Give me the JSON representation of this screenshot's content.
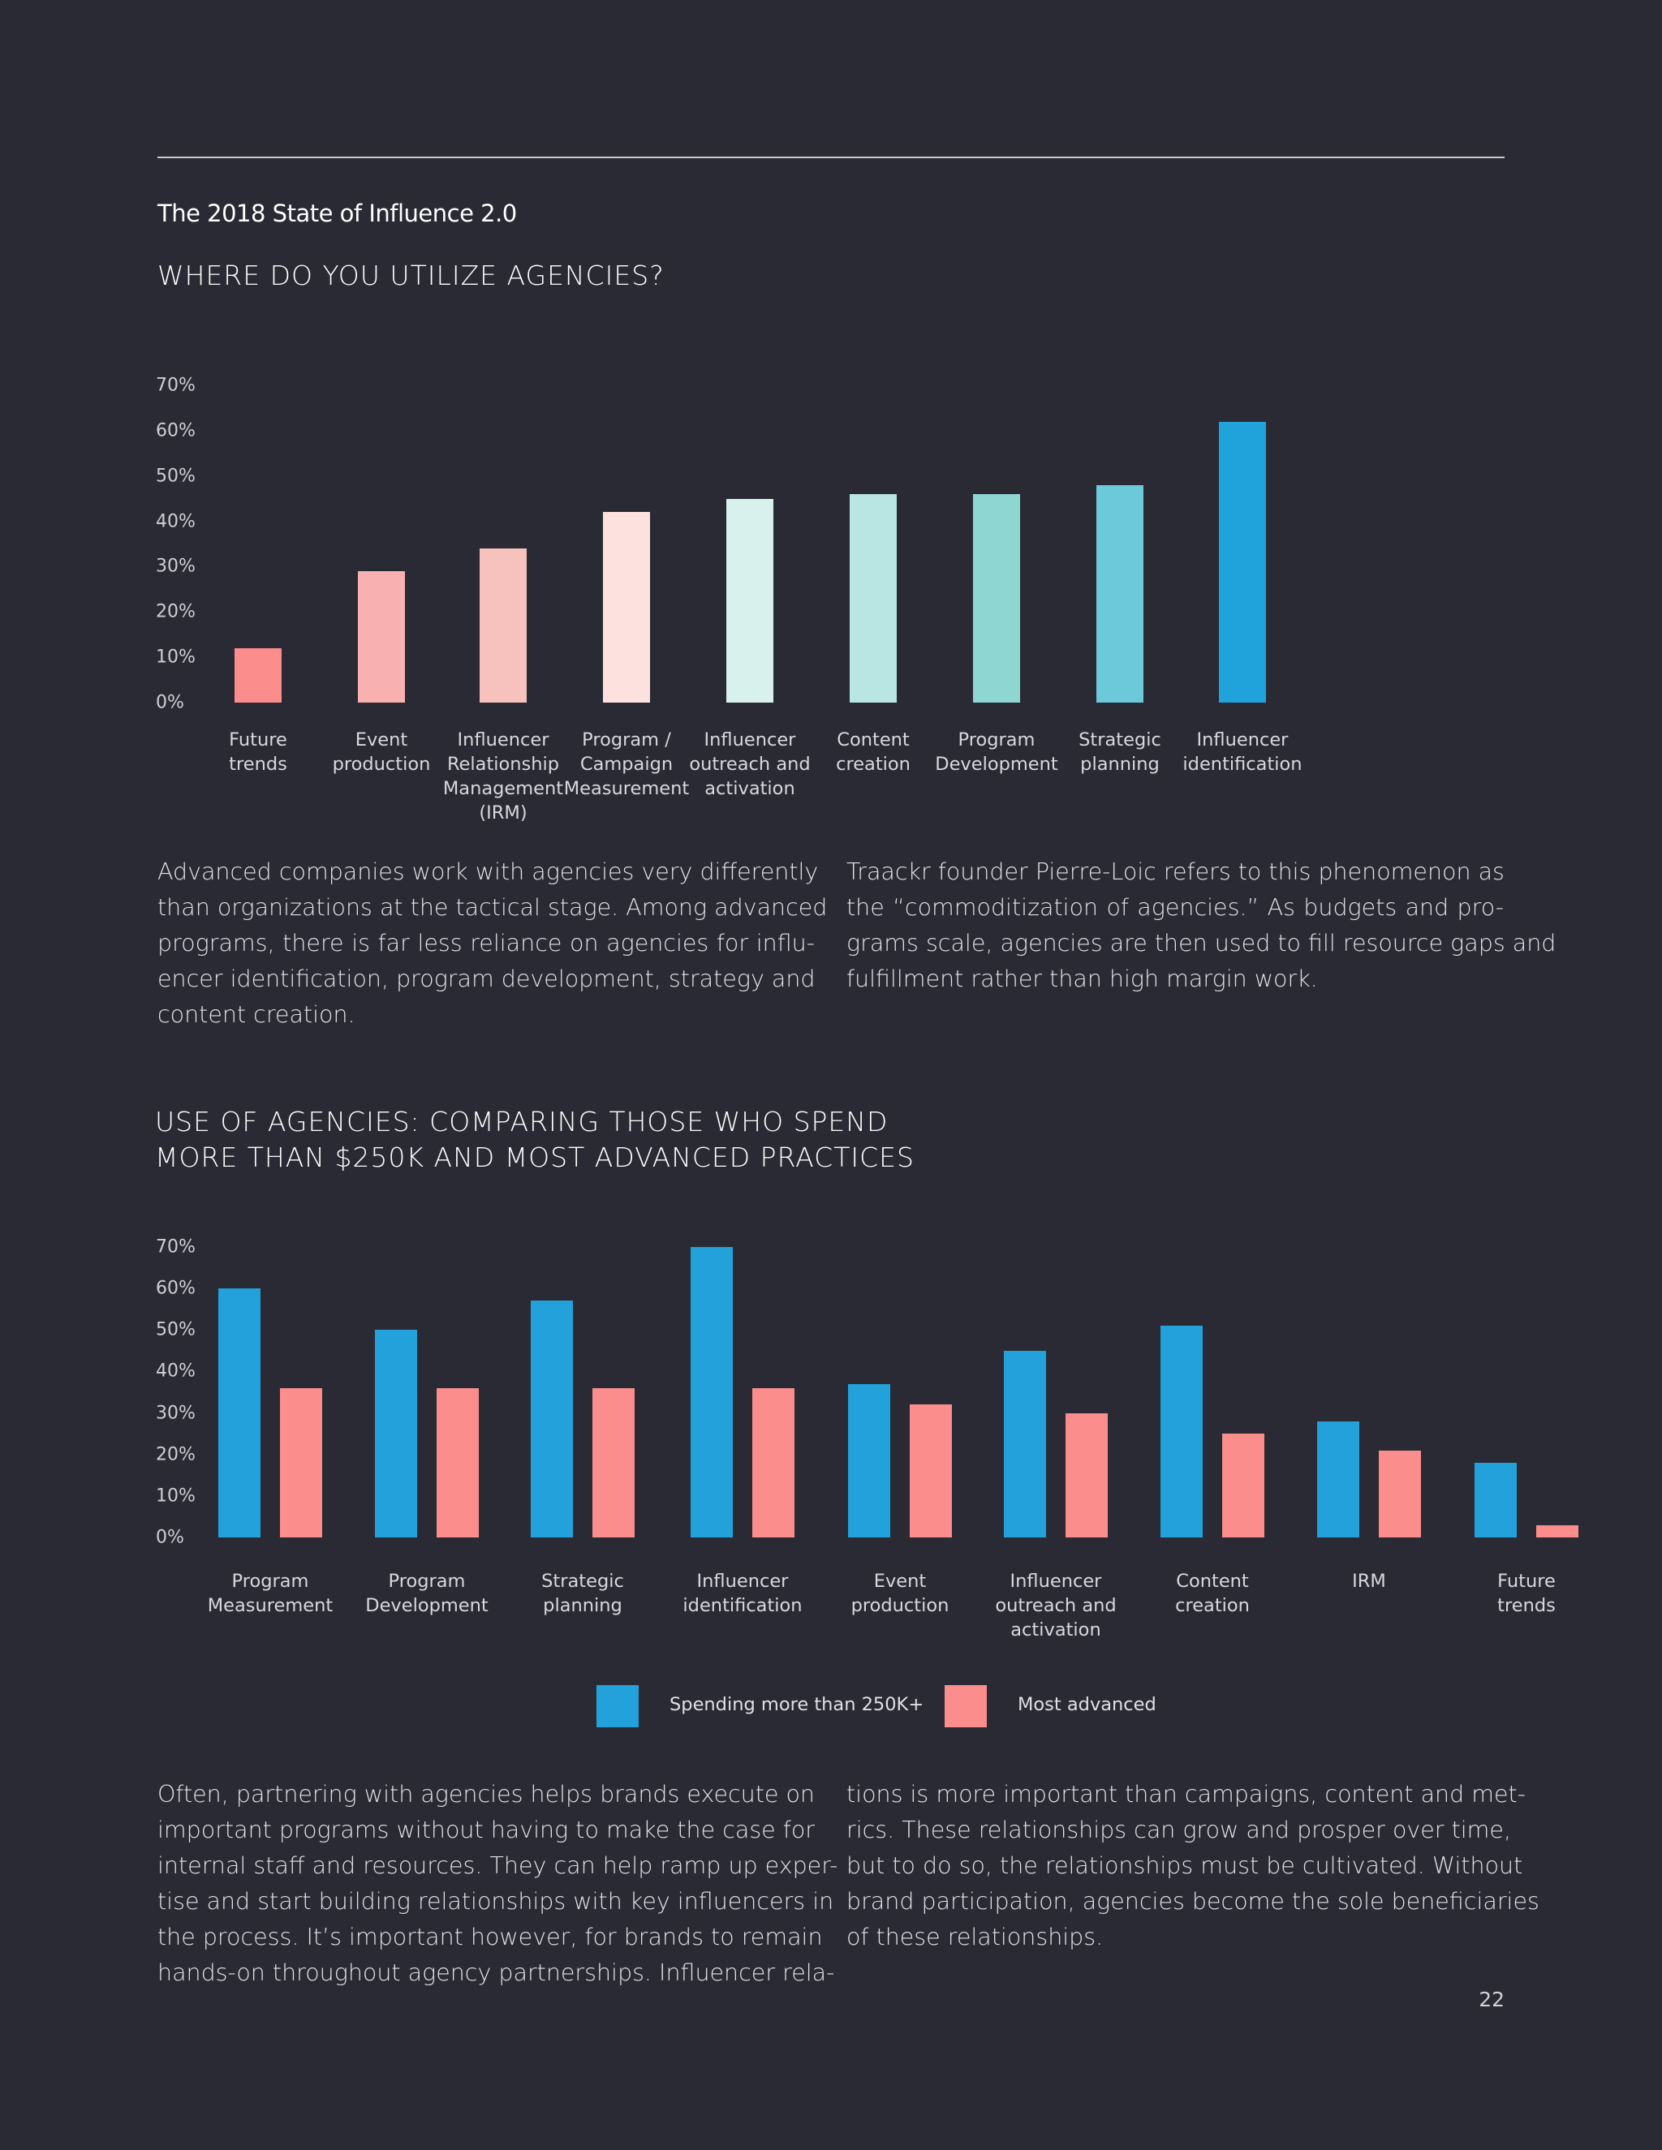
{
  "header": {
    "doc_title": "The 2018 State of Influence 2.0"
  },
  "section1": {
    "heading": [
      "WHERE DO YOU UTILIZE AGENCIES?"
    ],
    "paragraph_left": [
      "Advanced companies work with agencies very differently",
      "than organizations at the tactical stage. Among advanced",
      "programs, there is far less reliance on agencies for influ-",
      "encer identification, program development, strategy and",
      "content creation."
    ],
    "paragraph_right": [
      "Traackr founder Pierre-Loic refers to this phenomenon as",
      "the “commoditization of agencies.” As budgets and pro-",
      "grams scale, agencies are then used to fill resource gaps and",
      "fulfillment rather than high margin work."
    ]
  },
  "section2": {
    "heading": [
      "USE OF AGENCIES: COMPARING THOSE WHO SPEND",
      "MORE THAN $250K AND MOST ADVANCED PRACTICES"
    ],
    "paragraph_left": [
      "Often, partnering with agencies helps brands execute on",
      "important programs without having to make the case for",
      "internal staff and resources. They can help ramp up exper-",
      "tise and start building relationships with key influencers in",
      "the process. It’s important however, for brands to remain",
      "hands-on throughout agency partnerships. Influencer rela-"
    ],
    "paragraph_right": [
      "tions is more important than campaigns, content and met-",
      "rics. These relationships can grow and prosper over time,",
      "but to do so, the relationships must be cultivated. Without",
      "brand participation, agencies become the sole beneficiaries",
      "of these relationships."
    ]
  },
  "footer": {
    "page_number": "22"
  },
  "chart_data": [
    {
      "type": "bar",
      "title": "WHERE DO YOU UTILIZE AGENCIES?",
      "categories": [
        [
          "Future",
          "trends"
        ],
        [
          "Event",
          "production"
        ],
        [
          "Influencer",
          "Relationship",
          "Management",
          "(IRM)"
        ],
        [
          "Program /",
          "Campaign",
          "Measurement"
        ],
        [
          "Influencer",
          "outreach and",
          "activation"
        ],
        [
          "Content",
          "creation"
        ],
        [
          "Program",
          "Development"
        ],
        [
          "Strategic",
          "planning"
        ],
        [
          "Influencer",
          "identification"
        ]
      ],
      "values": [
        12,
        29,
        34,
        42,
        45,
        46,
        46,
        48,
        62
      ],
      "colors": [
        "#fc8d8d",
        "#f9b0b1",
        "#f7c2be",
        "#fde1de",
        "#d8f1ed",
        "#b9e6e3",
        "#8dd6d2",
        "#6cc9d9",
        "#20a2db"
      ],
      "yticks": [
        "0%",
        "10%",
        "20%",
        "30%",
        "40%",
        "50%",
        "60%",
        "70%"
      ],
      "ylim": [
        0,
        70
      ],
      "grid": false
    },
    {
      "type": "bar",
      "title": "USE OF AGENCIES: COMPARING THOSE WHO SPEND MORE THAN $250K AND MOST ADVANCED PRACTICES",
      "categories": [
        [
          "Program",
          "Measurement"
        ],
        [
          "Program",
          "Development"
        ],
        [
          "Strategic",
          "planning"
        ],
        [
          "Influencer",
          "identification"
        ],
        [
          "Event",
          "production"
        ],
        [
          "Influencer",
          "outreach and",
          "activation"
        ],
        [
          "Content",
          "creation"
        ],
        [
          "IRM"
        ],
        [
          "Future",
          "trends"
        ]
      ],
      "series": [
        {
          "name": "Spending more than 250K+",
          "color": "#22a1da",
          "values": [
            60,
            50,
            57,
            70,
            37,
            45,
            51,
            28,
            18
          ]
        },
        {
          "name": "Most advanced",
          "color": "#fc8d8d",
          "values": [
            36,
            36,
            36,
            36,
            32,
            30,
            25,
            21,
            3
          ]
        }
      ],
      "yticks": [
        "0%",
        "10%",
        "20%",
        "30%",
        "40%",
        "50%",
        "60%",
        "70%"
      ],
      "ylim": [
        0,
        70
      ],
      "legend": "bottom",
      "grid": false
    }
  ]
}
